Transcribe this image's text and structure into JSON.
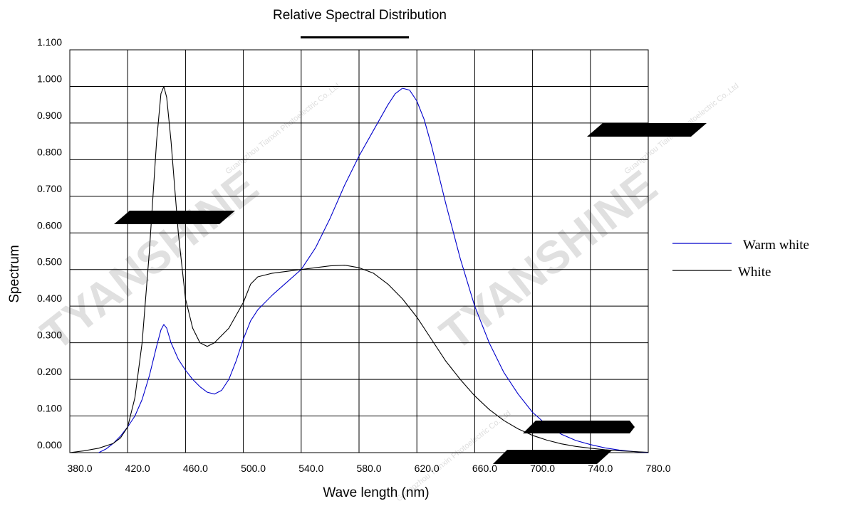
{
  "chart_data": {
    "type": "line",
    "title": "Relative Spectral Distribution",
    "xlabel": "Wave length (nm)",
    "ylabel": "Spectrum",
    "xlim": [
      380,
      780
    ],
    "ylim": [
      0,
      1.1
    ],
    "x_ticks": [
      380,
      420,
      460,
      500,
      540,
      580,
      620,
      660,
      700,
      740,
      780
    ],
    "x_tick_labels": [
      "380.0",
      "420.0",
      "460.0",
      "500.0",
      "540.0",
      "580.0",
      "620.0",
      "660.0",
      "700.0",
      "740.0",
      "780.0"
    ],
    "y_ticks": [
      0,
      0.1,
      0.2,
      0.3,
      0.4,
      0.5,
      0.6,
      0.7,
      0.8,
      0.9,
      1.0,
      1.1
    ],
    "y_tick_labels": [
      "0.000",
      "0.100",
      "0.200",
      "0.300",
      "0.400",
      "0.500",
      "0.600",
      "0.700",
      "0.800",
      "0.900",
      "1.000",
      "1.100"
    ],
    "grid": true,
    "legend_position": "right",
    "series": [
      {
        "name": "Warm white",
        "color": "#0000cc",
        "points": [
          [
            400,
            0.0
          ],
          [
            405,
            0.01
          ],
          [
            410,
            0.025
          ],
          [
            415,
            0.045
          ],
          [
            420,
            0.07
          ],
          [
            425,
            0.1
          ],
          [
            430,
            0.145
          ],
          [
            435,
            0.21
          ],
          [
            440,
            0.29
          ],
          [
            443,
            0.335
          ],
          [
            445,
            0.35
          ],
          [
            447,
            0.34
          ],
          [
            450,
            0.3
          ],
          [
            455,
            0.255
          ],
          [
            460,
            0.225
          ],
          [
            465,
            0.2
          ],
          [
            470,
            0.18
          ],
          [
            475,
            0.165
          ],
          [
            480,
            0.16
          ],
          [
            485,
            0.17
          ],
          [
            490,
            0.2
          ],
          [
            495,
            0.25
          ],
          [
            500,
            0.31
          ],
          [
            505,
            0.36
          ],
          [
            510,
            0.39
          ],
          [
            520,
            0.43
          ],
          [
            530,
            0.465
          ],
          [
            540,
            0.5
          ],
          [
            550,
            0.56
          ],
          [
            560,
            0.64
          ],
          [
            570,
            0.73
          ],
          [
            580,
            0.81
          ],
          [
            590,
            0.88
          ],
          [
            600,
            0.95
          ],
          [
            605,
            0.98
          ],
          [
            610,
            0.995
          ],
          [
            615,
            0.99
          ],
          [
            620,
            0.96
          ],
          [
            625,
            0.91
          ],
          [
            630,
            0.84
          ],
          [
            640,
            0.68
          ],
          [
            650,
            0.53
          ],
          [
            660,
            0.4
          ],
          [
            670,
            0.3
          ],
          [
            680,
            0.22
          ],
          [
            690,
            0.16
          ],
          [
            700,
            0.11
          ],
          [
            710,
            0.075
          ],
          [
            720,
            0.05
          ],
          [
            730,
            0.033
          ],
          [
            740,
            0.022
          ],
          [
            750,
            0.013
          ],
          [
            760,
            0.007
          ],
          [
            770,
            0.003
          ],
          [
            780,
            0.0
          ]
        ]
      },
      {
        "name": "White",
        "color": "#000000",
        "points": [
          [
            380,
            0.0
          ],
          [
            390,
            0.005
          ],
          [
            400,
            0.012
          ],
          [
            410,
            0.025
          ],
          [
            415,
            0.04
          ],
          [
            420,
            0.07
          ],
          [
            425,
            0.15
          ],
          [
            430,
            0.3
          ],
          [
            435,
            0.55
          ],
          [
            440,
            0.85
          ],
          [
            443,
            0.98
          ],
          [
            445,
            1.0
          ],
          [
            447,
            0.97
          ],
          [
            450,
            0.85
          ],
          [
            455,
            0.6
          ],
          [
            460,
            0.42
          ],
          [
            465,
            0.34
          ],
          [
            470,
            0.3
          ],
          [
            475,
            0.29
          ],
          [
            480,
            0.3
          ],
          [
            490,
            0.34
          ],
          [
            500,
            0.41
          ],
          [
            505,
            0.46
          ],
          [
            510,
            0.48
          ],
          [
            520,
            0.49
          ],
          [
            540,
            0.5
          ],
          [
            560,
            0.51
          ],
          [
            570,
            0.512
          ],
          [
            580,
            0.505
          ],
          [
            590,
            0.49
          ],
          [
            600,
            0.46
          ],
          [
            610,
            0.42
          ],
          [
            620,
            0.37
          ],
          [
            630,
            0.31
          ],
          [
            640,
            0.25
          ],
          [
            650,
            0.2
          ],
          [
            660,
            0.155
          ],
          [
            670,
            0.118
          ],
          [
            680,
            0.088
          ],
          [
            690,
            0.065
          ],
          [
            700,
            0.047
          ],
          [
            710,
            0.034
          ],
          [
            720,
            0.024
          ],
          [
            730,
            0.017
          ],
          [
            740,
            0.012
          ],
          [
            750,
            0.008
          ],
          [
            760,
            0.005
          ],
          [
            770,
            0.003
          ],
          [
            780,
            0.001
          ]
        ]
      }
    ]
  },
  "watermark": {
    "brand": "TYANSHINE",
    "company": "Guangzhou Tianxin Photoelectric Co.,Ltd"
  }
}
